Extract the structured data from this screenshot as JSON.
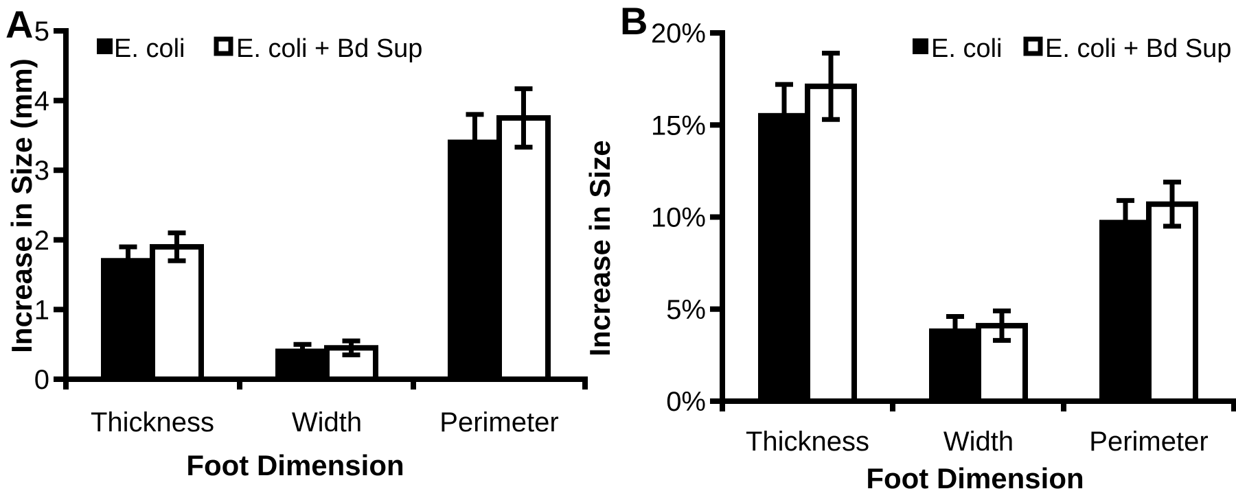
{
  "figure": {
    "background": "#ffffff",
    "ink_color": "#000000",
    "panel_labels": [
      "A",
      "B"
    ]
  },
  "chart_data": [
    {
      "type": "bar",
      "panel_label": "A",
      "title": "",
      "xlabel": "Foot Dimension",
      "ylabel": "Increase in Size (mm)",
      "categories": [
        "Thickness",
        "Width",
        "Perimeter"
      ],
      "series": [
        {
          "name": "E. coli",
          "fill": "#000000",
          "values": [
            1.7,
            0.4,
            3.4
          ],
          "errors": [
            0.2,
            0.1,
            0.4
          ]
        },
        {
          "name": "E. coli + Bd Sup",
          "fill": "#ffffff",
          "values": [
            1.9,
            0.45,
            3.75
          ],
          "errors": [
            0.2,
            0.1,
            0.42
          ]
        }
      ],
      "ylim": [
        0,
        5
      ],
      "yticks": [
        {
          "value": 0,
          "label": "0"
        },
        {
          "value": 1,
          "label": "1"
        },
        {
          "value": 2,
          "label": "2"
        },
        {
          "value": 3,
          "label": "3"
        },
        {
          "value": 4,
          "label": "4"
        },
        {
          "value": 5,
          "label": "5"
        }
      ],
      "grid": false,
      "legend_position": "top",
      "legend": [
        "E. coli",
        "E. coli + Bd Sup"
      ]
    },
    {
      "type": "bar",
      "panel_label": "B",
      "title": "",
      "xlabel": "Foot Dimension",
      "ylabel": "Increase in Size",
      "categories": [
        "Thickness",
        "Width",
        "Perimeter"
      ],
      "series": [
        {
          "name": "E. coli",
          "fill": "#000000",
          "values": [
            15.5,
            3.8,
            9.7
          ],
          "errors": [
            1.7,
            0.8,
            1.2
          ]
        },
        {
          "name": "E. coli + Bd Sup",
          "fill": "#ffffff",
          "values": [
            17.1,
            4.1,
            10.7
          ],
          "errors": [
            1.8,
            0.8,
            1.2
          ]
        }
      ],
      "ylim": [
        0,
        20
      ],
      "yticks": [
        {
          "value": 0,
          "label": "0%"
        },
        {
          "value": 5,
          "label": "5%"
        },
        {
          "value": 10,
          "label": "10%"
        },
        {
          "value": 15,
          "label": "15%"
        },
        {
          "value": 20,
          "label": "20%"
        }
      ],
      "grid": false,
      "legend_position": "top",
      "legend": [
        "E. coli",
        "E. coli + Bd Sup"
      ]
    }
  ]
}
